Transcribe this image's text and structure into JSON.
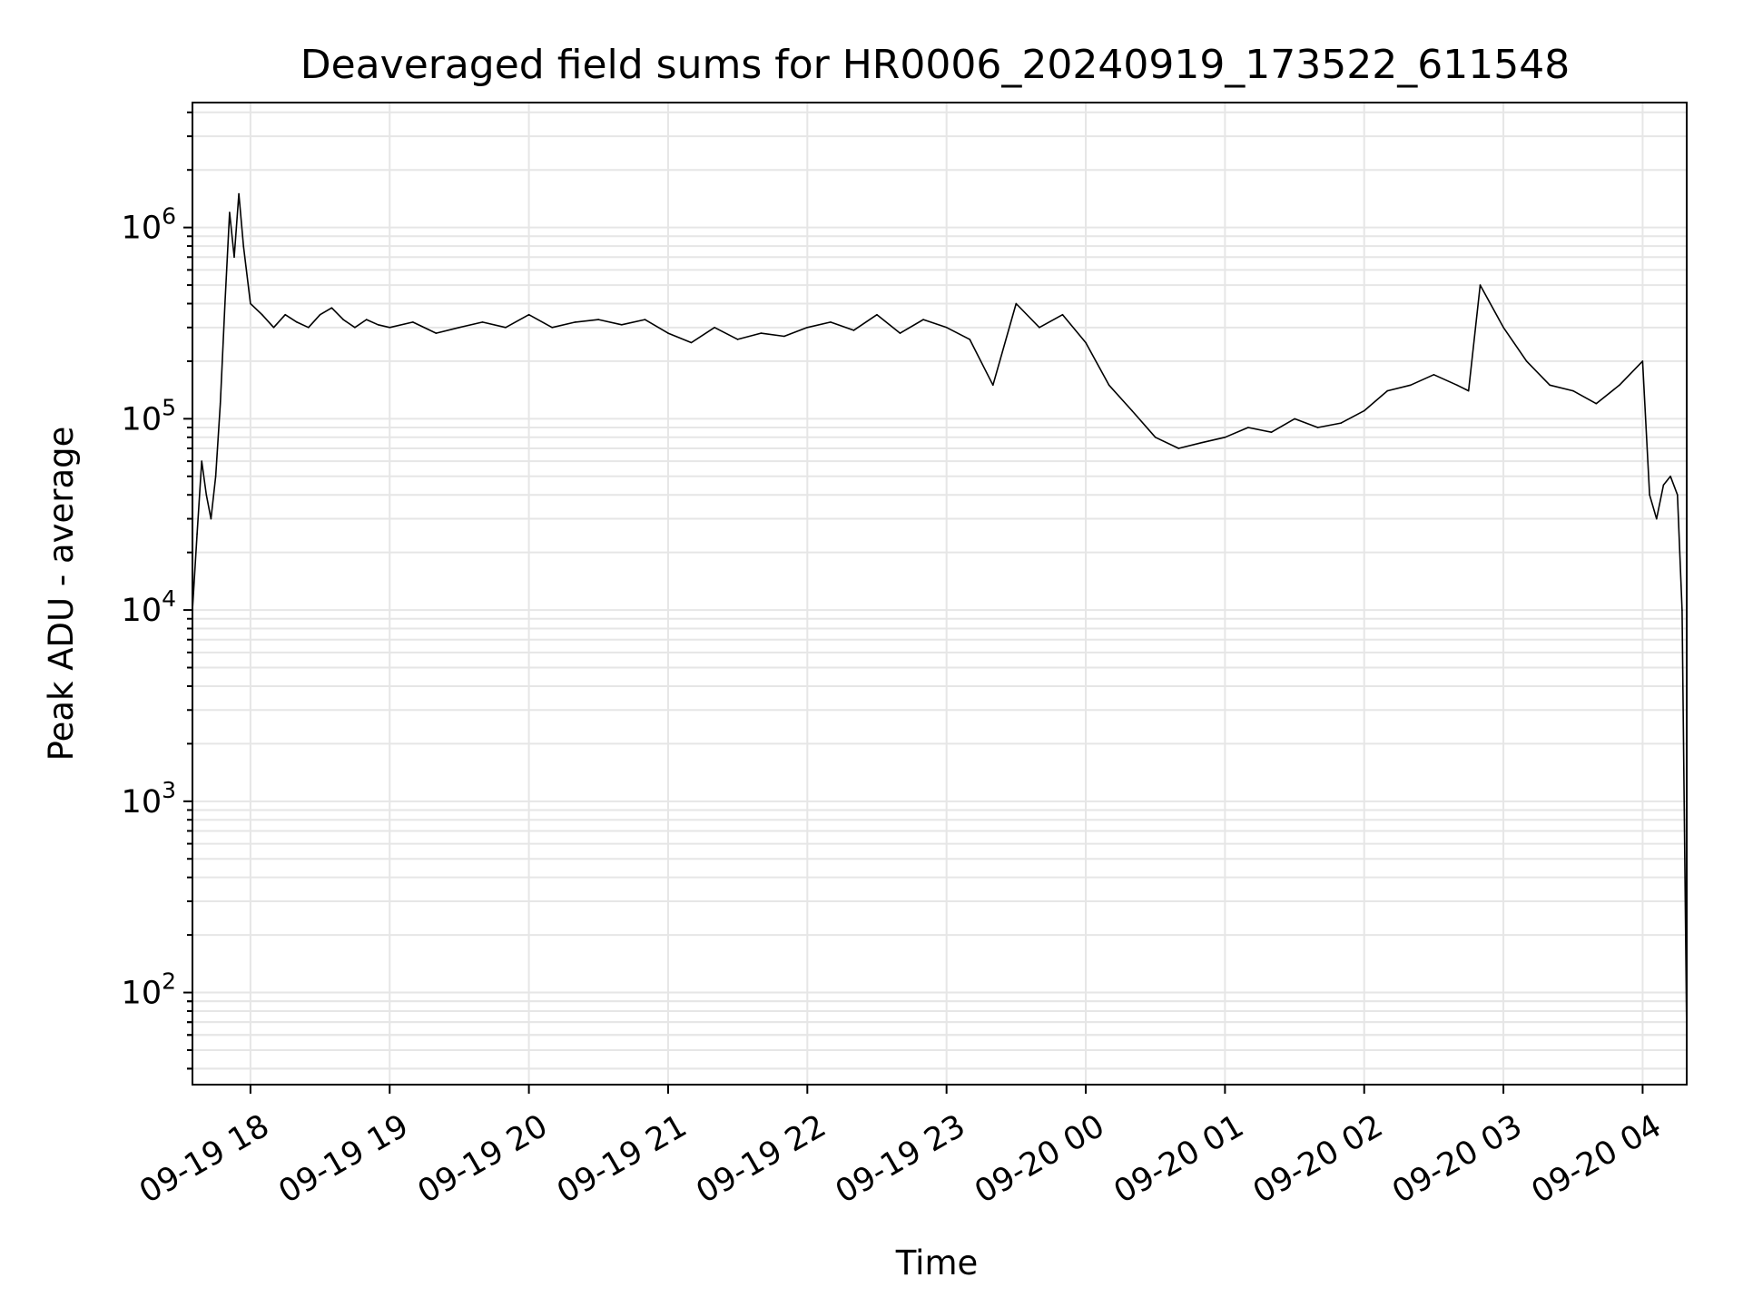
{
  "chart_data": {
    "type": "line",
    "title": "Deaveraged field sums for HR0006_20240919_173522_611548",
    "xlabel": "Time",
    "ylabel": "Peak ADU - average",
    "yscale": "log",
    "grid": "on (major and minor)",
    "line_color": "#000000",
    "grid_color": "#e6e6e6",
    "xlim": [
      "09-19 17:35",
      "09-20 04:19"
    ],
    "ylim": [
      33,
      4500000
    ],
    "x_tick_labels": [
      "09-19 18",
      "09-19 19",
      "09-19 20",
      "09-19 21",
      "09-19 22",
      "09-19 23",
      "09-20 00",
      "09-20 01",
      "09-20 02",
      "09-20 03",
      "09-20 04"
    ],
    "y_tick_labels": [
      {
        "base": "10",
        "exp": "2",
        "value": 100
      },
      {
        "base": "10",
        "exp": "3",
        "value": 1000
      },
      {
        "base": "10",
        "exp": "4",
        "value": 10000
      },
      {
        "base": "10",
        "exp": "5",
        "value": 100000
      },
      {
        "base": "10",
        "exp": "6",
        "value": 1000000
      }
    ],
    "series": [
      {
        "x": [
          "09-19 17:35",
          "09-19 17:37",
          "09-19 17:39",
          "09-19 17:41",
          "09-19 17:43",
          "09-19 17:45",
          "09-19 17:47",
          "09-19 17:49",
          "09-19 17:51",
          "09-19 17:53",
          "09-19 17:55",
          "09-19 17:57",
          "09-19 18:00",
          "09-19 18:05",
          "09-19 18:10",
          "09-19 18:15",
          "09-19 18:20",
          "09-19 18:25",
          "09-19 18:30",
          "09-19 18:35",
          "09-19 18:40",
          "09-19 18:45",
          "09-19 18:50",
          "09-19 18:55",
          "09-19 19:00",
          "09-19 19:10",
          "09-19 19:20",
          "09-19 19:30",
          "09-19 19:40",
          "09-19 19:50",
          "09-19 20:00",
          "09-19 20:10",
          "09-19 20:20",
          "09-19 20:30",
          "09-19 20:40",
          "09-19 20:50",
          "09-19 21:00",
          "09-19 21:10",
          "09-19 21:20",
          "09-19 21:30",
          "09-19 21:40",
          "09-19 21:50",
          "09-19 22:00",
          "09-19 22:10",
          "09-19 22:20",
          "09-19 22:30",
          "09-19 22:40",
          "09-19 22:50",
          "09-19 23:00",
          "09-19 23:10",
          "09-19 23:20",
          "09-19 23:30",
          "09-19 23:40",
          "09-19 23:50",
          "09-20 00:00",
          "09-20 00:10",
          "09-20 00:20",
          "09-20 00:30",
          "09-20 00:40",
          "09-20 00:50",
          "09-20 01:00",
          "09-20 01:10",
          "09-20 01:20",
          "09-20 01:30",
          "09-20 01:40",
          "09-20 01:50",
          "09-20 02:00",
          "09-20 02:10",
          "09-20 02:20",
          "09-20 02:30",
          "09-20 02:40",
          "09-20 02:45",
          "09-20 02:50",
          "09-20 03:00",
          "09-20 03:10",
          "09-20 03:20",
          "09-20 03:30",
          "09-20 03:40",
          "09-20 03:50",
          "09-20 04:00",
          "09-20 04:03",
          "09-20 04:06",
          "09-20 04:09",
          "09-20 04:12",
          "09-20 04:15",
          "09-20 04:17",
          "09-20 04:19"
        ],
        "y": [
          10000,
          25000,
          60000,
          40000,
          30000,
          50000,
          120000,
          400000,
          1200000,
          700000,
          1500000,
          800000,
          400000,
          350000,
          300000,
          350000,
          320000,
          300000,
          350000,
          380000,
          330000,
          300000,
          330000,
          310000,
          300000,
          320000,
          280000,
          300000,
          320000,
          300000,
          350000,
          300000,
          320000,
          330000,
          310000,
          330000,
          280000,
          250000,
          300000,
          260000,
          280000,
          270000,
          300000,
          320000,
          290000,
          350000,
          280000,
          330000,
          300000,
          260000,
          150000,
          400000,
          300000,
          350000,
          250000,
          150000,
          110000,
          80000,
          70000,
          75000,
          80000,
          90000,
          85000,
          100000,
          90000,
          95000,
          110000,
          140000,
          150000,
          170000,
          150000,
          140000,
          500000,
          300000,
          200000,
          150000,
          140000,
          120000,
          150000,
          200000,
          40000,
          30000,
          45000,
          50000,
          40000,
          10000,
          60
        ]
      }
    ]
  }
}
